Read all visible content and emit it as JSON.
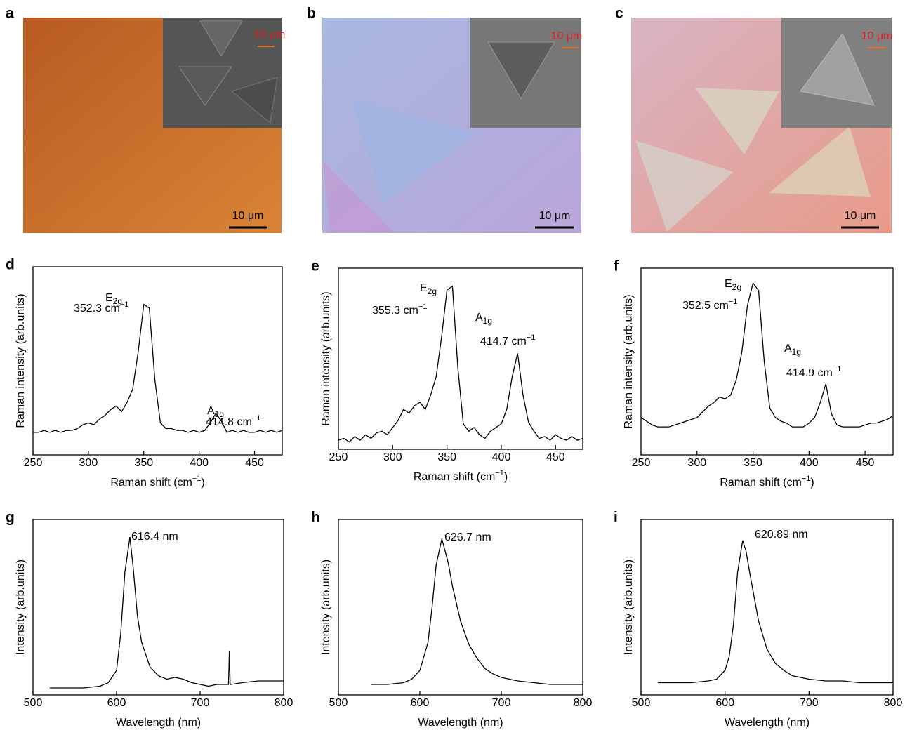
{
  "figure_panels": [
    {
      "label": "a",
      "scale_bar": "10 μm",
      "inset_scale_bar": "10 μm"
    },
    {
      "label": "b",
      "scale_bar": "10 μm",
      "inset_scale_bar": "10 μm"
    },
    {
      "label": "c",
      "scale_bar": "10 μm",
      "inset_scale_bar": "10 μm"
    }
  ],
  "chart_data": [
    {
      "type": "line",
      "label": "d",
      "color": "#000000",
      "xlabel": {
        "before": "Raman shift (cm",
        "sup": "−1",
        "after": ")"
      },
      "ylabel": "Raman intensity (arb.units)",
      "xlim": [
        250,
        475
      ],
      "ylim": [
        0,
        100
      ],
      "xticks": [
        250,
        300,
        350,
        400,
        450
      ],
      "annotations": [
        {
          "text": "E",
          "sub": "2g"
        },
        {
          "text": "352.3 cm",
          "sup": "−1"
        },
        {
          "text": "A",
          "sub": "1g"
        },
        {
          "text": "414.8 cm",
          "sup": "−1"
        }
      ],
      "x": [
        250,
        255,
        260,
        265,
        270,
        275,
        280,
        285,
        290,
        295,
        300,
        305,
        310,
        315,
        320,
        325,
        330,
        335,
        340,
        345,
        350,
        355,
        360,
        365,
        370,
        375,
        380,
        385,
        390,
        395,
        400,
        405,
        410,
        415,
        420,
        425,
        430,
        435,
        440,
        445,
        450,
        455,
        460,
        465,
        470,
        475
      ],
      "values": [
        12,
        12,
        13,
        12,
        13,
        12,
        13,
        13,
        14,
        16,
        17,
        16,
        19,
        21,
        24,
        26,
        23,
        28,
        35,
        55,
        80,
        78,
        40,
        17,
        14,
        14,
        13,
        13,
        12,
        13,
        12,
        13,
        17,
        22,
        18,
        12,
        13,
        12,
        13,
        12,
        12,
        13,
        12,
        13,
        12,
        13
      ]
    },
    {
      "type": "line",
      "label": "e",
      "color": "#000000",
      "xlabel": {
        "before": "Raman shift (cm",
        "sup": "−1",
        "after": ")"
      },
      "ylabel": "Raman intensity (arb.units)",
      "xlim": [
        250,
        475
      ],
      "ylim": [
        0,
        100
      ],
      "xticks": [
        250,
        300,
        350,
        400,
        450
      ],
      "annotations": [
        {
          "text": "E",
          "sub": "2g"
        },
        {
          "text": "355.3 cm",
          "sup": "−1"
        },
        {
          "text": "A",
          "sub": "1g"
        },
        {
          "text": "414.7 cm",
          "sup": "−1"
        }
      ],
      "x": [
        250,
        255,
        260,
        265,
        270,
        275,
        280,
        285,
        290,
        295,
        300,
        305,
        310,
        315,
        320,
        325,
        330,
        335,
        340,
        345,
        350,
        355,
        360,
        365,
        370,
        375,
        380,
        385,
        390,
        395,
        400,
        405,
        410,
        415,
        420,
        425,
        430,
        435,
        440,
        445,
        450,
        455,
        460,
        465,
        470,
        475
      ],
      "values": [
        5,
        6,
        4,
        7,
        5,
        8,
        6,
        9,
        10,
        8,
        12,
        16,
        22,
        20,
        24,
        26,
        22,
        30,
        40,
        62,
        88,
        90,
        45,
        14,
        10,
        12,
        8,
        6,
        10,
        12,
        14,
        22,
        40,
        53,
        30,
        15,
        10,
        6,
        7,
        5,
        8,
        6,
        5,
        7,
        5,
        6
      ]
    },
    {
      "type": "line",
      "label": "f",
      "color": "#000000",
      "xlabel": {
        "before": "Raman shift (cm",
        "sup": "−1",
        "after": ")"
      },
      "ylabel": "Raman intensity (arb.units)",
      "xlim": [
        250,
        475
      ],
      "ylim": [
        0,
        100
      ],
      "xticks": [
        250,
        300,
        350,
        400,
        450
      ],
      "annotations": [
        {
          "text": "E",
          "sub": "2g"
        },
        {
          "text": "352.5 cm",
          "sup": "−1"
        },
        {
          "text": "A",
          "sub": "1g"
        },
        {
          "text": "414.9 cm",
          "sup": "−1"
        }
      ],
      "x": [
        250,
        255,
        260,
        265,
        270,
        275,
        280,
        285,
        290,
        295,
        300,
        305,
        310,
        315,
        320,
        325,
        330,
        335,
        340,
        345,
        350,
        355,
        360,
        365,
        370,
        375,
        380,
        385,
        390,
        395,
        400,
        405,
        410,
        415,
        420,
        425,
        430,
        435,
        440,
        445,
        450,
        455,
        460,
        465,
        470,
        475
      ],
      "values": [
        20,
        18,
        16,
        15,
        15,
        15,
        16,
        17,
        18,
        19,
        20,
        23,
        26,
        28,
        31,
        30,
        32,
        40,
        55,
        80,
        92,
        88,
        50,
        25,
        20,
        18,
        17,
        15,
        15,
        15,
        17,
        20,
        28,
        38,
        22,
        16,
        15,
        15,
        15,
        15,
        16,
        17,
        17,
        18,
        19,
        21
      ]
    },
    {
      "type": "line",
      "label": "g",
      "color": "#000000",
      "xlabel": {
        "before": "Wavelength (nm)"
      },
      "ylabel": "Intensity (arb.units)",
      "xlim": [
        500,
        800
      ],
      "ylim": [
        0,
        100
      ],
      "xticks": [
        500,
        600,
        700,
        800
      ],
      "annotations": [
        {
          "text": "616.4 nm"
        }
      ],
      "x": [
        520,
        540,
        560,
        580,
        590,
        600,
        605,
        610,
        616,
        620,
        625,
        630,
        640,
        650,
        660,
        670,
        680,
        690,
        700,
        710,
        720,
        734,
        735,
        736,
        737,
        750,
        770,
        790,
        800
      ],
      "values": [
        4,
        4,
        4,
        5,
        7,
        14,
        35,
        70,
        90,
        72,
        45,
        30,
        16,
        11,
        9,
        10,
        9,
        7,
        6,
        5,
        6,
        6,
        25,
        6,
        6,
        7,
        8,
        8,
        8
      ]
    },
    {
      "type": "line",
      "label": "h",
      "color": "#000000",
      "xlabel": {
        "before": "Wavelength (nm)"
      },
      "ylabel": "Intensity (arb.units)",
      "xlim": [
        500,
        800
      ],
      "ylim": [
        0,
        100
      ],
      "xticks": [
        500,
        600,
        700,
        800
      ],
      "annotations": [
        {
          "text": "626.7 nm"
        }
      ],
      "x": [
        540,
        560,
        580,
        590,
        600,
        610,
        615,
        620,
        627,
        635,
        640,
        650,
        660,
        670,
        680,
        690,
        700,
        720,
        740,
        760,
        780,
        800
      ],
      "values": [
        6,
        6,
        7,
        9,
        14,
        30,
        50,
        74,
        89,
        75,
        62,
        42,
        29,
        21,
        15,
        12,
        10,
        8,
        7,
        6,
        6,
        6
      ]
    },
    {
      "type": "line",
      "label": "i",
      "color": "#000000",
      "xlabel": {
        "before": "Wavelength (nm)"
      },
      "ylabel": "Intensity (arb.units)",
      "xlim": [
        500,
        800
      ],
      "ylim": [
        0,
        100
      ],
      "xticks": [
        500,
        600,
        700,
        800
      ],
      "annotations": [
        {
          "text": "620.89 nm"
        }
      ],
      "x": [
        520,
        540,
        560,
        580,
        590,
        600,
        605,
        610,
        615,
        621,
        625,
        630,
        640,
        650,
        660,
        670,
        680,
        700,
        720,
        740,
        760,
        780,
        800
      ],
      "values": [
        7,
        7,
        7,
        8,
        9,
        14,
        22,
        40,
        70,
        88,
        82,
        68,
        42,
        26,
        18,
        14,
        11,
        9,
        8,
        8,
        7,
        7,
        7
      ]
    }
  ]
}
